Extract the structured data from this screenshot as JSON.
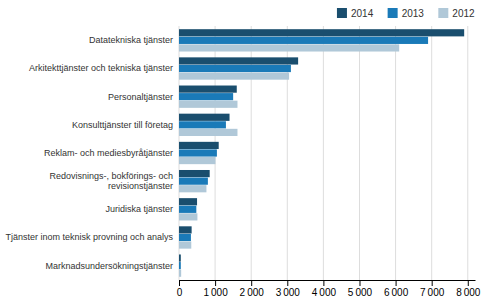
{
  "chart_data": {
    "type": "bar",
    "orientation": "horizontal",
    "categories": [
      "Marknadsundersökningstjänster",
      "Tjänster inom teknisk provning och analys",
      "Juridiska tjänster",
      "Redovisnings-, bokförings- och\nrevisionstjänster",
      "Reklam- och mediesbyråtjänster",
      "Konsulttjänster till företag",
      "Personaltjänster",
      "Arkitekttjänster och tekniska tjänster",
      "Datatekniska tjänster"
    ],
    "series": [
      {
        "name": "2014",
        "color": "#1a4e6e",
        "values": [
          50,
          350,
          500,
          850,
          1100,
          1400,
          1600,
          3300,
          7900
        ]
      },
      {
        "name": "2013",
        "color": "#1a7ab8",
        "values": [
          50,
          330,
          480,
          800,
          1050,
          1300,
          1500,
          3100,
          6900
        ]
      },
      {
        "name": "2012",
        "color": "#b0c8d8",
        "values": [
          60,
          340,
          510,
          760,
          1010,
          1620,
          1620,
          3050,
          6100
        ]
      }
    ],
    "xlim": [
      0,
      8200
    ],
    "xticks": [
      0,
      {
        "value": 1000,
        "label": "1 000"
      },
      {
        "value": 2000,
        "label": "2 000"
      },
      {
        "value": 3000,
        "label": "3 000"
      },
      {
        "value": 4000,
        "label": "4 000"
      },
      {
        "value": 5000,
        "label": "5 000"
      },
      {
        "value": 6000,
        "label": "6 000"
      },
      {
        "value": 7000,
        "label": "7 000"
      },
      {
        "value": 8000,
        "label": "8 000"
      }
    ],
    "grid": true,
    "legend": "top"
  }
}
